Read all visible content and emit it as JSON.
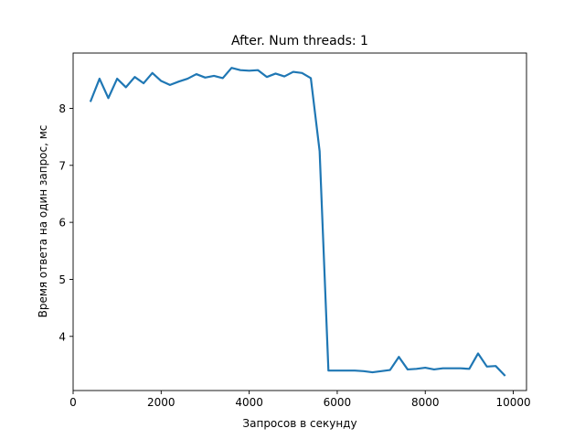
{
  "chart_data": {
    "type": "line",
    "title": "After. Num threads: 1",
    "xlabel": "Запросов в секунду",
    "ylabel": "Время ответа на один запрос, мс",
    "xlim": [
      0,
      10300
    ],
    "ylim": [
      3.05,
      8.97
    ],
    "xticks": [
      0,
      2000,
      4000,
      6000,
      8000,
      10000
    ],
    "xtick_labels": [
      "0",
      "2000",
      "4000",
      "6000",
      "8000",
      "10000"
    ],
    "yticks": [
      4,
      5,
      6,
      7,
      8
    ],
    "ytick_labels": [
      "4",
      "5",
      "6",
      "7",
      "8"
    ],
    "grid": false,
    "legend": false,
    "series": [
      {
        "color": "#1f77b4",
        "x": [
          400,
          600,
          800,
          1000,
          1200,
          1400,
          1600,
          1800,
          2000,
          2200,
          2400,
          2600,
          2800,
          3000,
          3200,
          3400,
          3600,
          3800,
          4000,
          4200,
          4400,
          4600,
          4800,
          5000,
          5200,
          5400,
          5600,
          5800,
          6000,
          6200,
          6400,
          6600,
          6800,
          7000,
          7200,
          7400,
          7600,
          7800,
          8000,
          8200,
          8400,
          8600,
          8800,
          9000,
          9200,
          9400,
          9600,
          9800
        ],
        "y": [
          8.13,
          8.52,
          8.18,
          8.52,
          8.37,
          8.55,
          8.44,
          8.62,
          8.48,
          8.41,
          8.47,
          8.52,
          8.6,
          8.54,
          8.57,
          8.53,
          8.71,
          8.67,
          8.66,
          8.67,
          8.55,
          8.61,
          8.56,
          8.64,
          8.62,
          8.53,
          7.25,
          3.4,
          3.4,
          3.4,
          3.4,
          3.39,
          3.37,
          3.39,
          3.41,
          3.64,
          3.42,
          3.43,
          3.45,
          3.42,
          3.44,
          3.44,
          3.44,
          3.43,
          3.7,
          3.47,
          3.48,
          3.32
        ]
      }
    ]
  }
}
